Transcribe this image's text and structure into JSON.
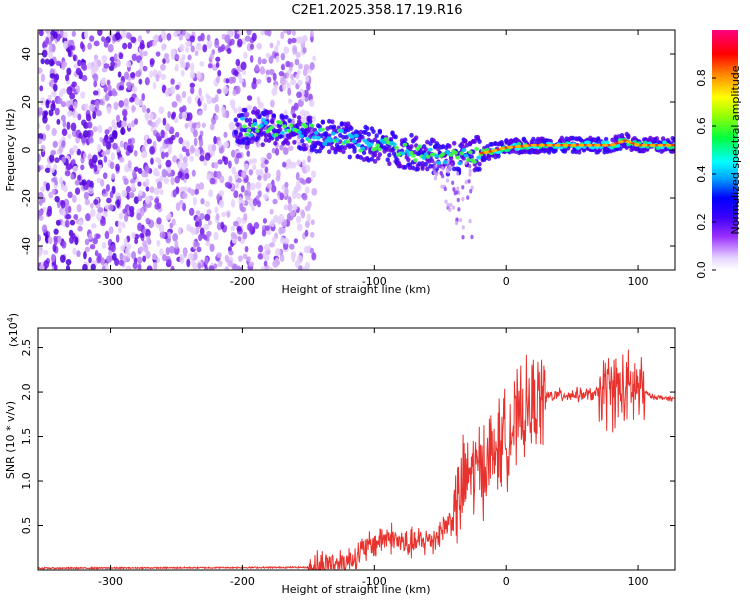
{
  "title": "C2E1.2025.358.17.19.R16",
  "chart_data": [
    {
      "type": "heatmap",
      "panel": "top",
      "description_values": "spectrogram of frequency vs height; strongest band near 0 Hz for heights > -200 km",
      "xlabel": "Height of straight line (km)",
      "ylabel": "Frequency (Hz)",
      "xlim": [
        -355,
        128
      ],
      "ylim": [
        -50,
        50
      ],
      "xticks": [
        -300,
        -200,
        -100,
        0,
        100
      ],
      "xtick_labels": [
        "-300",
        "-200",
        "-100",
        "0",
        "100"
      ],
      "yticks": [
        -40,
        -20,
        0,
        20,
        40
      ],
      "ytick_labels": [
        "-40",
        "-20",
        "0",
        "20",
        "40"
      ],
      "ridge_x": [
        -205,
        -180,
        -150,
        -120,
        -100,
        -80,
        -60,
        -45,
        -30,
        -15,
        0,
        20,
        40,
        60,
        80,
        90,
        100,
        128
      ],
      "ridge_y": [
        10,
        9,
        7,
        4,
        2,
        0,
        -2,
        -4,
        -2,
        -1,
        1,
        2,
        2,
        2,
        2,
        4,
        2,
        2
      ],
      "colorbar": {
        "label": "Normalized spectral amplitude",
        "ticks": [
          0.0,
          0.2,
          0.4,
          0.6,
          0.8
        ],
        "tick_labels": [
          "0.0",
          "0.2",
          "0.4",
          "0.6",
          "0.8"
        ],
        "range": [
          0,
          1
        ]
      }
    },
    {
      "type": "line",
      "panel": "bottom",
      "series_name": "SNR",
      "color": "#e8322d",
      "xlabel": "Height of straight line (km)",
      "ylabel": "SNR (10 * v/v)",
      "exponent_label": "(x10",
      "exponent_power": "4",
      "exponent_close": ")",
      "xlim": [
        -355,
        128
      ],
      "ylim": [
        0,
        2.72
      ],
      "xticks": [
        -300,
        -200,
        -100,
        0,
        100
      ],
      "xtick_labels": [
        "-300",
        "-200",
        "-100",
        "0",
        "100"
      ],
      "yticks": [
        0.5,
        1.0,
        1.5,
        2.0,
        2.5
      ],
      "ytick_labels": [
        "0.5",
        "1.0",
        "1.5",
        "2.0",
        "2.5"
      ],
      "envelope_x": [
        -355,
        -150,
        -120,
        -100,
        -90,
        -75,
        -55,
        -40,
        -30,
        -20,
        -10,
        0,
        10,
        20,
        30,
        45,
        60,
        70,
        80,
        90,
        100,
        110,
        128
      ],
      "envelope_y": [
        0.02,
        0.03,
        0.1,
        0.3,
        0.38,
        0.28,
        0.35,
        0.6,
        1.05,
        1.15,
        1.3,
        1.5,
        1.7,
        1.85,
        1.95,
        1.97,
        1.97,
        1.98,
        2.05,
        2.0,
        2.05,
        1.95,
        1.92
      ]
    }
  ]
}
